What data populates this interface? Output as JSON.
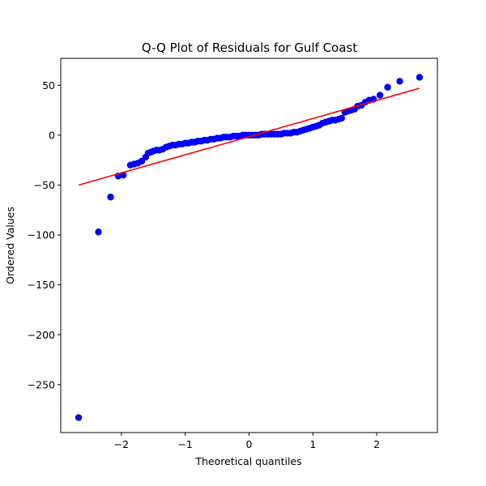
{
  "chart_data": {
    "type": "scatter",
    "title": "Q-Q Plot of Residuals for Gulf Coast",
    "xlabel": "Theoretical quantiles",
    "ylabel": "Ordered Values",
    "xlim": [
      -2.95,
      2.95
    ],
    "ylim": [
      -298,
      77
    ],
    "xticks": [
      -2,
      -1,
      0,
      1,
      2
    ],
    "xtick_labels": [
      "−2",
      "−1",
      "0",
      "1",
      "2"
    ],
    "yticks": [
      50,
      0,
      -50,
      -100,
      -150,
      -200,
      -250
    ],
    "ytick_labels": [
      "50",
      "0",
      "−50",
      "−100",
      "−150",
      "−200",
      "−250"
    ],
    "grid": false,
    "series": [
      {
        "color": "#0000ff",
        "x": [
          -2.67,
          -2.36,
          -2.17,
          -2.05,
          -1.97,
          -1.86,
          -1.8,
          -1.74,
          -1.68,
          -1.62,
          -1.58,
          -1.54,
          -1.5,
          -1.45,
          -1.4,
          -1.35,
          -1.3,
          -1.25,
          -1.2,
          -1.15,
          -1.1,
          -1.05,
          -1.0,
          -0.95,
          -0.9,
          -0.85,
          -0.8,
          -0.75,
          -0.7,
          -0.65,
          -0.6,
          -0.55,
          -0.5,
          -0.45,
          -0.4,
          -0.35,
          -0.3,
          -0.25,
          -0.2,
          -0.15,
          -0.1,
          -0.05,
          0.0,
          0.05,
          0.1,
          0.15,
          0.2,
          0.25,
          0.3,
          0.35,
          0.4,
          0.45,
          0.5,
          0.55,
          0.6,
          0.65,
          0.7,
          0.75,
          0.8,
          0.85,
          0.9,
          0.95,
          1.0,
          1.05,
          1.1,
          1.15,
          1.2,
          1.25,
          1.3,
          1.35,
          1.4,
          1.45,
          1.5,
          1.55,
          1.6,
          1.65,
          1.7,
          1.76,
          1.82,
          1.88,
          1.95,
          2.05,
          2.17,
          2.36,
          2.67
        ],
        "y": [
          -283,
          -97,
          -62,
          -41,
          -40,
          -30,
          -29,
          -28,
          -26,
          -22,
          -18,
          -17,
          -16,
          -15,
          -15,
          -14,
          -12,
          -11,
          -10,
          -10,
          -9,
          -9,
          -8,
          -8,
          -7,
          -7,
          -6,
          -6,
          -5,
          -5,
          -4,
          -4,
          -3,
          -3,
          -2,
          -2,
          -2,
          -1,
          -1,
          -1,
          0,
          0,
          0,
          0,
          0,
          0,
          1,
          1,
          1,
          1,
          1,
          1,
          1,
          2,
          2,
          2,
          3,
          3,
          4,
          5,
          6,
          7,
          8,
          9,
          10,
          12,
          13,
          14,
          15,
          15,
          16,
          17,
          23,
          24,
          25,
          26,
          29,
          30,
          33,
          35,
          36,
          40,
          48,
          54,
          58
        ]
      }
    ],
    "fit_line": {
      "color": "#ff0000",
      "x": [
        -2.67,
        2.67
      ],
      "y": [
        -50,
        47
      ]
    }
  }
}
